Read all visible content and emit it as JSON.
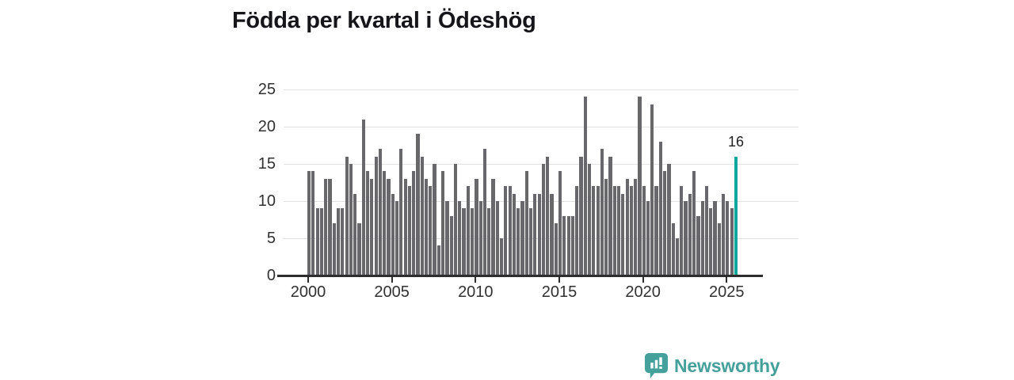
{
  "title": "Födda per kvartal i Ödeshög",
  "chart_data": {
    "type": "bar",
    "title": "Födda per kvartal i Ödeshög",
    "x_start": {
      "year": 2000,
      "quarter": 1
    },
    "x_end": {
      "year": 2025,
      "quarter": 3
    },
    "values": [
      14,
      14,
      9,
      9,
      13,
      13,
      7,
      9,
      9,
      16,
      15,
      11,
      7,
      21,
      14,
      13,
      16,
      17,
      14,
      13,
      11,
      10,
      17,
      13,
      12,
      14,
      19,
      16,
      13,
      12,
      15,
      4,
      14,
      10,
      8,
      15,
      10,
      9,
      12,
      9,
      13,
      10,
      17,
      9,
      13,
      10,
      5,
      12,
      12,
      11,
      9,
      10,
      14,
      9,
      11,
      11,
      15,
      16,
      11,
      7,
      14,
      8,
      8,
      8,
      12,
      16,
      24,
      15,
      12,
      12,
      17,
      13,
      16,
      12,
      12,
      11,
      13,
      12,
      13,
      24,
      12,
      10,
      23,
      12,
      18,
      14,
      15,
      7,
      5,
      12,
      10,
      11,
      14,
      8,
      10,
      12,
      9,
      10,
      7,
      11,
      10,
      9,
      16
    ],
    "highlight": {
      "index": 102,
      "label": "16",
      "value": 16,
      "period": "2025 Q3"
    },
    "yticks": [
      0,
      5,
      10,
      15,
      20,
      25
    ],
    "xticks": [
      2000,
      2005,
      2010,
      2015,
      2020,
      2025
    ],
    "ylim": [
      0,
      25
    ],
    "grid": "horizontal",
    "legend": "none",
    "bar_color": "#67676c",
    "highlight_color": "#0ca89b"
  },
  "annotation": {
    "text": "16"
  },
  "logo": {
    "text": "Newsworthy",
    "color": "#44a09b",
    "icon": "speech-bubble-bar-chart-icon"
  }
}
